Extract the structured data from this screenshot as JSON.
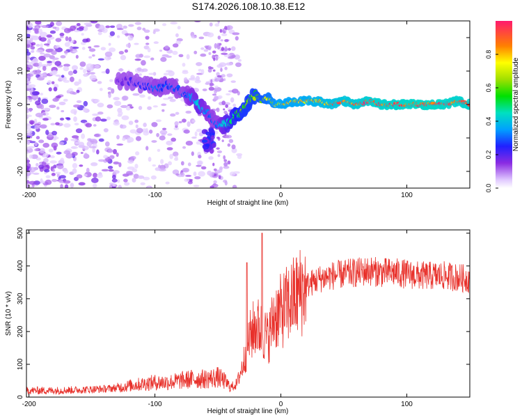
{
  "title": "S174.2026.108.10.38.E12",
  "chart_data": [
    {
      "type": "heatmap",
      "xlabel": "Height of straight line (km)",
      "ylabel": "Frequency (Hz)",
      "xlim": [
        -202,
        150
      ],
      "ylim": [
        -25,
        25
      ],
      "xticks": [
        -200,
        -100,
        0,
        100
      ],
      "yticks": [
        -20,
        -10,
        0,
        10,
        20
      ],
      "colorbar": {
        "label": "Normalized spectral amplitude",
        "range": [
          0,
          1
        ],
        "ticks": [
          0.0,
          0.2,
          0.4,
          0.6,
          0.8
        ],
        "tick_labels": [
          "0.0",
          "0.2",
          "0.4",
          "0.6",
          "0.8"
        ]
      },
      "ridge": {
        "x": [
          -130,
          -120,
          -110,
          -100,
          -95,
          -90,
          -85,
          -80,
          -75,
          -70,
          -65,
          -60,
          -55,
          -50,
          -45,
          -40,
          -35,
          -30,
          -25,
          -20,
          -15,
          -10,
          -5,
          0,
          10,
          20,
          30,
          40,
          50,
          60,
          70,
          80,
          90,
          100,
          110,
          120,
          130,
          140,
          150
        ],
        "frequency": [
          7,
          7,
          6,
          5,
          5,
          6,
          5,
          4,
          3,
          2,
          0,
          -2,
          -4,
          -6,
          -6,
          -5,
          -3,
          -2,
          1,
          3,
          1,
          2,
          0,
          0,
          1,
          1,
          1,
          0,
          1,
          0,
          1,
          0,
          0,
          0,
          0,
          0,
          0,
          1,
          0
        ],
        "amplitude": [
          0.15,
          0.2,
          0.25,
          0.3,
          0.3,
          0.28,
          0.3,
          0.28,
          0.3,
          0.35,
          0.4,
          0.35,
          0.3,
          0.3,
          0.4,
          0.5,
          0.55,
          0.6,
          0.6,
          0.62,
          0.65,
          0.7,
          0.75,
          0.8,
          0.8,
          0.82,
          0.85,
          0.88,
          0.9,
          0.92,
          0.93,
          0.95,
          0.95,
          0.96,
          0.97,
          0.97,
          0.96,
          0.95,
          0.95
        ]
      }
    },
    {
      "type": "line",
      "xlabel": "Height of straight line (km)",
      "ylabel": "SNR (10 * v/v)",
      "xlim": [
        -202,
        150
      ],
      "ylim": [
        0,
        510
      ],
      "xticks": [
        -200,
        -100,
        0,
        100
      ],
      "yticks": [
        0,
        100,
        200,
        300,
        400,
        500
      ],
      "series": [
        {
          "name": "SNR",
          "color": "#e8302a",
          "x": [
            -200,
            -180,
            -160,
            -140,
            -130,
            -120,
            -110,
            -100,
            -90,
            -80,
            -70,
            -60,
            -50,
            -45,
            -40,
            -35,
            -30,
            -25,
            -20,
            -15,
            -10,
            -5,
            0,
            5,
            10,
            15,
            20,
            25,
            30,
            40,
            50,
            60,
            70,
            80,
            90,
            100,
            110,
            120,
            130,
            140,
            150
          ],
          "y": [
            20,
            20,
            22,
            25,
            28,
            35,
            40,
            45,
            45,
            50,
            55,
            55,
            60,
            50,
            30,
            40,
            100,
            180,
            220,
            200,
            180,
            250,
            260,
            280,
            300,
            320,
            340,
            350,
            360,
            370,
            375,
            380,
            385,
            380,
            380,
            375,
            370,
            370,
            370,
            365,
            360
          ]
        }
      ],
      "spikes": [
        {
          "x": -27,
          "y": 410
        },
        {
          "x": -15,
          "y": 500
        }
      ]
    }
  ]
}
